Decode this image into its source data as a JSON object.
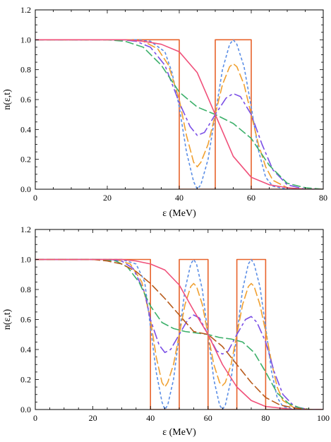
{
  "chart_data": [
    {
      "type": "line",
      "xlabel": "ε (MeV)",
      "ylabel": "n(ε,t)",
      "xlim": [
        0,
        80
      ],
      "ylim": [
        0,
        1.2
      ],
      "xticks": [
        0,
        20,
        40,
        60,
        80
      ],
      "yticks": [
        0.0,
        0.2,
        0.4,
        0.6,
        0.8,
        1.0,
        1.2
      ],
      "grid": false,
      "series": [
        {
          "style": "solid-step",
          "color": "#e8632b",
          "x": [
            0,
            40,
            40,
            50,
            50,
            60,
            60,
            80
          ],
          "y": [
            1.0,
            1.0,
            0.0,
            0.0,
            1.0,
            1.0,
            0.0,
            0.0
          ]
        },
        {
          "style": "short-dash",
          "color": "#5b8ee6",
          "x": [
            0,
            28,
            32,
            36,
            38,
            40,
            42,
            44,
            45,
            46,
            48,
            50,
            52,
            54,
            55,
            56,
            58,
            60,
            62,
            64,
            66,
            70,
            75,
            80
          ],
          "y": [
            1.0,
            1.0,
            0.99,
            0.92,
            0.78,
            0.55,
            0.25,
            0.05,
            0.0,
            0.03,
            0.2,
            0.5,
            0.8,
            0.97,
            1.0,
            0.97,
            0.82,
            0.55,
            0.26,
            0.08,
            0.02,
            0.0,
            0.0,
            0.0
          ]
        },
        {
          "style": "long-dash",
          "color": "#f0a030",
          "x": [
            0,
            26,
            30,
            34,
            37,
            40,
            42,
            44,
            45,
            46,
            48,
            50,
            52,
            54,
            55,
            56,
            58,
            60,
            62,
            64,
            66,
            70,
            75,
            80
          ],
          "y": [
            1.0,
            1.0,
            0.99,
            0.94,
            0.83,
            0.6,
            0.36,
            0.18,
            0.15,
            0.18,
            0.3,
            0.5,
            0.7,
            0.82,
            0.84,
            0.82,
            0.7,
            0.5,
            0.3,
            0.15,
            0.06,
            0.01,
            0.0,
            0.0
          ]
        },
        {
          "style": "dash-dot",
          "color": "#7b4fe6",
          "x": [
            0,
            24,
            28,
            32,
            36,
            40,
            43,
            45,
            47,
            50,
            53,
            55,
            57,
            60,
            63,
            66,
            70,
            75,
            80
          ],
          "y": [
            1.0,
            1.0,
            0.99,
            0.95,
            0.83,
            0.58,
            0.42,
            0.36,
            0.38,
            0.5,
            0.61,
            0.64,
            0.62,
            0.5,
            0.3,
            0.13,
            0.03,
            0.0,
            0.0
          ]
        },
        {
          "style": "long-dash",
          "color": "#3cb06a",
          "x": [
            0,
            20,
            25,
            30,
            35,
            40,
            45,
            50,
            55,
            60,
            65,
            70,
            75,
            80
          ],
          "y": [
            1.0,
            1.0,
            0.99,
            0.95,
            0.83,
            0.65,
            0.55,
            0.5,
            0.44,
            0.34,
            0.16,
            0.04,
            0.01,
            0.0
          ]
        },
        {
          "style": "solid",
          "color": "#f0507a",
          "x": [
            0,
            25,
            30,
            35,
            40,
            45,
            50,
            55,
            60,
            65,
            70,
            75,
            80
          ],
          "y": [
            1.0,
            1.0,
            0.99,
            0.97,
            0.92,
            0.78,
            0.5,
            0.22,
            0.08,
            0.03,
            0.01,
            0.0,
            0.0
          ]
        }
      ]
    },
    {
      "type": "line",
      "xlabel": "ε (MeV)",
      "ylabel": "n(ε,t)",
      "xlim": [
        0,
        100
      ],
      "ylim": [
        0,
        1.2
      ],
      "xticks": [
        0,
        20,
        40,
        60,
        80,
        100
      ],
      "yticks": [
        0.0,
        0.2,
        0.4,
        0.6,
        0.8,
        1.0,
        1.2
      ],
      "grid": false,
      "series": [
        {
          "style": "solid-step",
          "color": "#e8632b",
          "x": [
            0,
            40,
            40,
            50,
            50,
            60,
            60,
            70,
            70,
            80,
            80,
            100
          ],
          "y": [
            1.0,
            1.0,
            0.0,
            0.0,
            1.0,
            1.0,
            0.0,
            0.0,
            1.0,
            1.0,
            0.0,
            0.0
          ]
        },
        {
          "style": "short-dash",
          "color": "#5b8ee6",
          "x": [
            0,
            30,
            35,
            38,
            40,
            42,
            44,
            45,
            46,
            48,
            50,
            52,
            54,
            55,
            56,
            58,
            60,
            62,
            64,
            65,
            66,
            68,
            70,
            72,
            74,
            75,
            76,
            78,
            80,
            82,
            84,
            86,
            90,
            95,
            100
          ],
          "y": [
            1.0,
            1.0,
            0.97,
            0.85,
            0.55,
            0.25,
            0.05,
            0.0,
            0.03,
            0.2,
            0.5,
            0.8,
            0.97,
            1.0,
            0.97,
            0.8,
            0.5,
            0.2,
            0.03,
            0.0,
            0.03,
            0.2,
            0.5,
            0.8,
            0.97,
            1.0,
            0.97,
            0.82,
            0.55,
            0.26,
            0.08,
            0.02,
            0.0,
            0.0,
            0.0
          ]
        },
        {
          "style": "long-dash",
          "color": "#f0a030",
          "x": [
            0,
            28,
            33,
            37,
            40,
            42,
            44,
            45,
            46,
            48,
            50,
            52,
            54,
            55,
            56,
            58,
            60,
            62,
            64,
            65,
            66,
            68,
            70,
            72,
            74,
            75,
            76,
            78,
            80,
            82,
            84,
            86,
            90,
            95,
            100
          ],
          "y": [
            1.0,
            1.0,
            0.97,
            0.85,
            0.6,
            0.35,
            0.18,
            0.15,
            0.18,
            0.3,
            0.5,
            0.7,
            0.82,
            0.84,
            0.82,
            0.7,
            0.5,
            0.3,
            0.18,
            0.16,
            0.18,
            0.3,
            0.5,
            0.7,
            0.82,
            0.84,
            0.82,
            0.7,
            0.52,
            0.32,
            0.15,
            0.06,
            0.01,
            0.0,
            0.0
          ]
        },
        {
          "style": "dash-dot",
          "color": "#7b4fe6",
          "x": [
            0,
            26,
            30,
            34,
            38,
            40,
            43,
            45,
            47,
            50,
            53,
            55,
            57,
            60,
            63,
            65,
            67,
            70,
            73,
            75,
            77,
            80,
            83,
            86,
            90,
            95,
            100
          ],
          "y": [
            1.0,
            1.0,
            0.99,
            0.94,
            0.78,
            0.6,
            0.43,
            0.38,
            0.4,
            0.5,
            0.6,
            0.63,
            0.61,
            0.5,
            0.39,
            0.37,
            0.39,
            0.5,
            0.6,
            0.62,
            0.58,
            0.45,
            0.25,
            0.1,
            0.02,
            0.0,
            0.0
          ]
        },
        {
          "style": "long-dash",
          "color": "#3cb06a",
          "x": [
            0,
            22,
            28,
            32,
            36,
            40,
            44,
            48,
            52,
            56,
            60,
            64,
            68,
            72,
            76,
            80,
            84,
            88,
            92,
            96,
            100
          ],
          "y": [
            1.0,
            1.0,
            0.99,
            0.95,
            0.85,
            0.69,
            0.58,
            0.54,
            0.52,
            0.51,
            0.5,
            0.48,
            0.47,
            0.45,
            0.38,
            0.25,
            0.11,
            0.04,
            0.01,
            0.0,
            0.0
          ]
        },
        {
          "style": "long-dash",
          "color": "#b85a1a",
          "x": [
            0,
            20,
            25,
            30,
            35,
            40,
            45,
            50,
            55,
            60,
            65,
            70,
            75,
            80,
            85,
            90,
            95,
            100
          ],
          "y": [
            1.0,
            1.0,
            0.99,
            0.97,
            0.92,
            0.84,
            0.74,
            0.63,
            0.52,
            0.5,
            0.42,
            0.3,
            0.18,
            0.08,
            0.03,
            0.01,
            0.0,
            0.0
          ]
        },
        {
          "style": "solid",
          "color": "#f0507a",
          "x": [
            0,
            30,
            35,
            40,
            45,
            50,
            55,
            60,
            65,
            70,
            75,
            80,
            85,
            90,
            100
          ],
          "y": [
            1.0,
            1.0,
            0.99,
            0.97,
            0.93,
            0.83,
            0.66,
            0.5,
            0.3,
            0.15,
            0.06,
            0.02,
            0.01,
            0.0,
            0.0
          ]
        }
      ]
    }
  ]
}
